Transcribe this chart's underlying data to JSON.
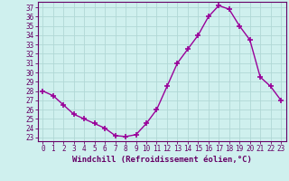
{
  "x": [
    0,
    1,
    2,
    3,
    4,
    5,
    6,
    7,
    8,
    9,
    10,
    11,
    12,
    13,
    14,
    15,
    16,
    17,
    18,
    19,
    20,
    21,
    22,
    23
  ],
  "y": [
    28.0,
    27.5,
    26.5,
    25.5,
    25.0,
    24.5,
    24.0,
    23.2,
    23.1,
    23.3,
    24.5,
    26.0,
    28.5,
    31.0,
    32.5,
    34.0,
    36.0,
    37.2,
    36.8,
    35.0,
    33.5,
    29.5,
    28.5,
    27.0
  ],
  "line_color": "#990099",
  "marker": "+",
  "markersize": 4,
  "markeredgewidth": 1.2,
  "bg_color": "#cff0ee",
  "grid_color": "#b0d8d5",
  "ylabel_ticks": [
    23,
    24,
    25,
    26,
    27,
    28,
    29,
    30,
    31,
    32,
    33,
    34,
    35,
    36,
    37
  ],
  "xlabel": "Windchill (Refroidissement éolien,°C)",
  "xlim": [
    -0.5,
    23.5
  ],
  "ylim": [
    22.6,
    37.6
  ],
  "tick_fontsize": 5.5,
  "label_fontsize": 6.5,
  "axis_color": "#660066",
  "linewidth": 1.0
}
